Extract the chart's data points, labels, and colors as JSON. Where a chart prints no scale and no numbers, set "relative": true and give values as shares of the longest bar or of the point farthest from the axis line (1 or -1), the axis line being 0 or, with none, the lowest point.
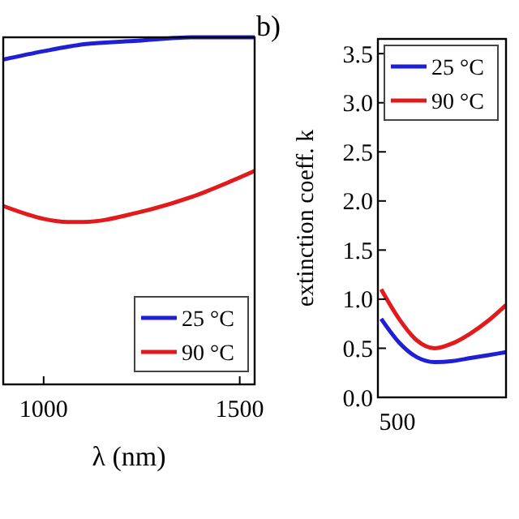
{
  "chart_data": [
    {
      "type": "line",
      "relative": true,
      "xlabel": "λ (nm)",
      "x": [
        897,
        1000,
        1103,
        1240,
        1377,
        1538
      ],
      "xlim": [
        897,
        1538
      ],
      "xticks": [
        1000,
        1500
      ],
      "legend": "bottom right",
      "tick_labels": "x",
      "series": [
        {
          "name": "25 °C",
          "color": "#1f1fd6",
          "values": [
            0.936,
            0.96,
            0.98,
            0.99,
            1,
            1
          ]
        },
        {
          "name": "90 °C",
          "color": "#e31a1c",
          "x": [
            897,
            1000,
            1060,
            1103,
            1240,
            1377,
            1538
          ],
          "values": [
            0.514,
            0.477,
            0.468,
            0.468,
            0.495,
            0.54,
            0.615
          ]
        }
      ]
    },
    {
      "type": "line",
      "title": "b)",
      "ylabel": "extinction coeff. k",
      "categories": [
        null,
        null,
        null,
        null,
        null,
        null,
        null,
        null
      ],
      "annotations": [
        "500"
      ],
      "ylim": [
        0,
        3.65
      ],
      "yticks": [
        {
          "value": 0,
          "label": "0.0"
        },
        {
          "value": 0.5,
          "label": "0.5"
        },
        {
          "value": 1,
          "label": "1.0"
        },
        {
          "value": 1.5,
          "label": "1.5"
        },
        {
          "value": 2,
          "label": "2.0"
        },
        {
          "value": 2.5,
          "label": "2.5"
        },
        {
          "value": 3,
          "label": "3.0"
        },
        {
          "value": 3.5,
          "label": "3.5"
        }
      ],
      "legend": "top left",
      "series": [
        {
          "name": "25 °C",
          "color": "#1f1fd6",
          "values": [
            0.8,
            0.56,
            0.41,
            0.36,
            0.37,
            0.4,
            0.43,
            0.46
          ]
        },
        {
          "name": "90 °C",
          "color": "#e31a1c",
          "values": [
            1.1,
            0.8,
            0.58,
            0.5,
            0.55,
            0.65,
            0.78,
            0.94
          ]
        }
      ]
    }
  ]
}
